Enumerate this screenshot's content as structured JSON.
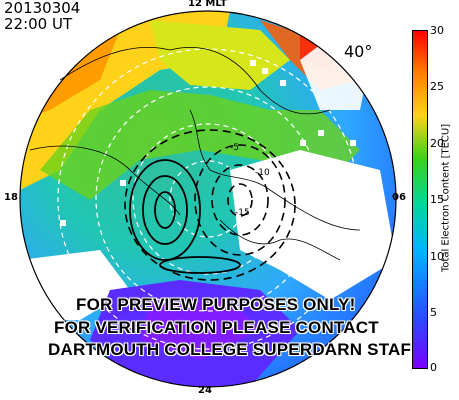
{
  "header": {
    "date": "20130304",
    "time": "22:00 UT"
  },
  "map": {
    "latitude_label": "40°",
    "mlt_labels": {
      "top": "12 MLT",
      "bottom": "24",
      "left": "18",
      "right": "06"
    },
    "contour_labels": [
      "-5",
      "-10",
      "-15"
    ]
  },
  "watermark": {
    "line1": "FOR PREVIEW PURPOSES ONLY!",
    "line2": "FOR VERIFICATION PLEASE CONTACT",
    "line3": "DARTMOUTH COLLEGE SUPERDARN STAFF"
  },
  "colorbar": {
    "title": "Total Electron Content [TECU]",
    "ticks": [
      "30",
      "25",
      "20",
      "15",
      "10",
      "5",
      "0"
    ],
    "colors": [
      "#7a00ff",
      "#2a4cff",
      "#00b4ff",
      "#00d6a0",
      "#39d21a",
      "#c8e01a",
      "#ffd21a",
      "#ff8c00",
      "#ff3a00",
      "#ff0000"
    ]
  }
}
